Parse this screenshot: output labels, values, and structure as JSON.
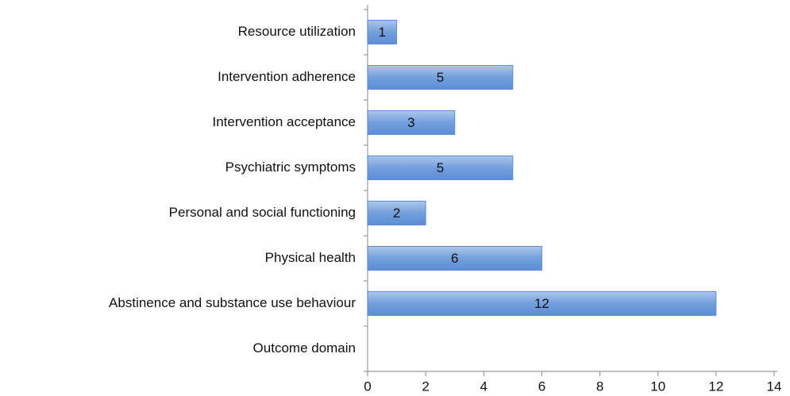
{
  "chart_data": {
    "type": "bar",
    "orientation": "horizontal",
    "categories": [
      "Resource utilization",
      "Intervention adherence",
      "Intervention acceptance",
      "Psychiatric symptoms",
      "Personal and social functioning",
      "Physical health",
      "Abstinence and substance use behaviour",
      "Outcome domain"
    ],
    "values": [
      1,
      5,
      3,
      5,
      2,
      6,
      12,
      null
    ],
    "color": "#5b8ed6",
    "xlim": [
      0,
      14
    ],
    "xticks": [
      0,
      2,
      4,
      6,
      8,
      10,
      12,
      14
    ],
    "grid": false,
    "data_labels": true
  }
}
